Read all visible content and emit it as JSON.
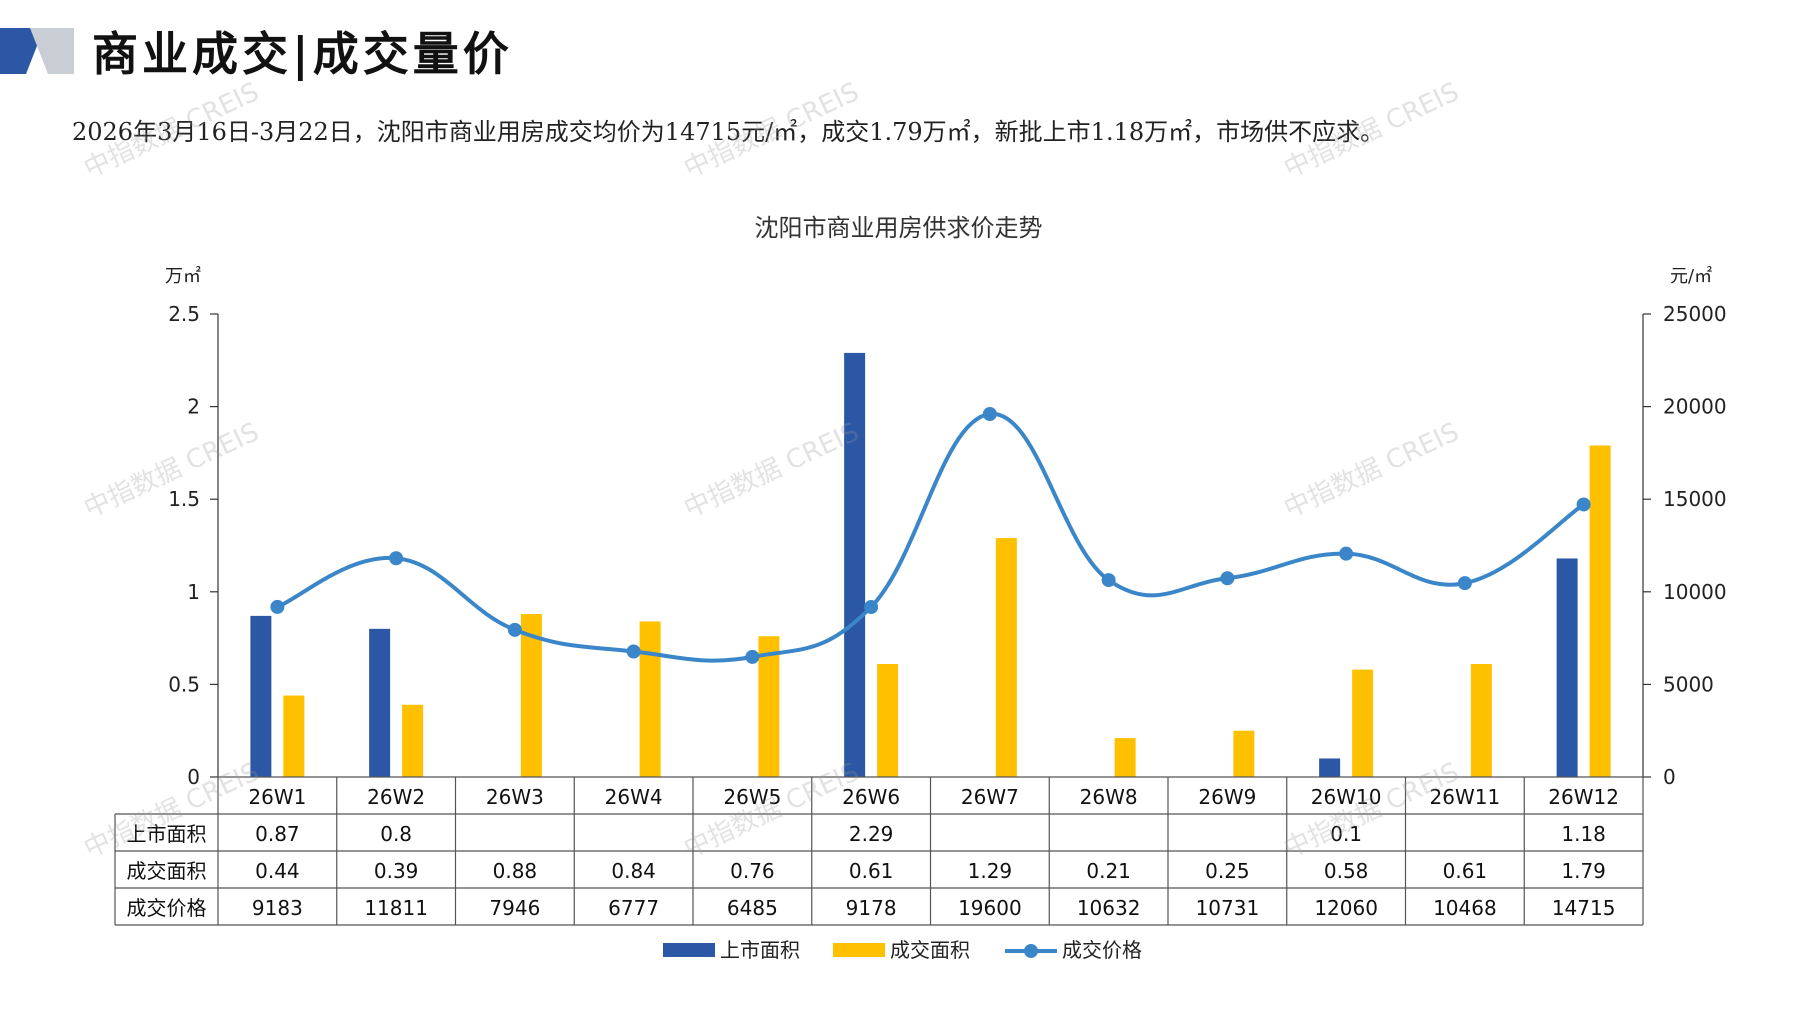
{
  "header": {
    "title": "商业成交|成交量价",
    "summary": "2026年3月16日-3月22日，沈阳市商业用房成交均价为14715元/㎡，成交1.79万㎡，新批上市1.18万㎡，市场供不应求。"
  },
  "watermark": "中指数据 CREIS",
  "colors": {
    "supply": "#2B57A5",
    "deal_area": "#FFC000",
    "price": "#3A86C8",
    "logo_dark": "#2B57A5",
    "logo_light": "#C9CDD4"
  },
  "chart_data": {
    "type": "bar",
    "title": "沈阳市商业用房供求价走势",
    "left_axis_unit": "万㎡",
    "right_axis_unit": "元/㎡",
    "left_ylim": [
      0,
      2.5
    ],
    "left_ticks": [
      "0",
      "0.5",
      "1",
      "1.5",
      "2",
      "2.5"
    ],
    "right_ylim": [
      0,
      25000
    ],
    "right_ticks": [
      "0",
      "5000",
      "10000",
      "15000",
      "20000",
      "25000"
    ],
    "categories": [
      "26W1",
      "26W2",
      "26W3",
      "26W4",
      "26W5",
      "26W6",
      "26W7",
      "26W8",
      "26W9",
      "26W10",
      "26W11",
      "26W12"
    ],
    "series": [
      {
        "name": "上市面积",
        "type": "bar",
        "axis": "left",
        "values": [
          0.87,
          0.8,
          null,
          null,
          null,
          2.29,
          null,
          null,
          null,
          0.1,
          null,
          1.18
        ]
      },
      {
        "name": "成交面积",
        "type": "bar",
        "axis": "left",
        "values": [
          0.44,
          0.39,
          0.88,
          0.84,
          0.76,
          0.61,
          1.29,
          0.21,
          0.25,
          0.58,
          0.61,
          1.79
        ]
      },
      {
        "name": "成交价格",
        "type": "line",
        "axis": "right",
        "values": [
          9183,
          11811,
          7946,
          6777,
          6485,
          9178,
          19600,
          10632,
          10731,
          12060,
          10468,
          14715
        ]
      }
    ],
    "table_display": [
      [
        "0.87",
        "0.8",
        "",
        "",
        "",
        "2.29",
        "",
        "",
        "",
        "0.1",
        "",
        "1.18"
      ],
      [
        "0.44",
        "0.39",
        "0.88",
        "0.84",
        "0.76",
        "0.61",
        "1.29",
        "0.21",
        "0.25",
        "0.58",
        "0.61",
        "1.79"
      ],
      [
        "9183",
        "11811",
        "7946",
        "6777",
        "6485",
        "9178",
        "19600",
        "10632",
        "10731",
        "12060",
        "10468",
        "14715"
      ]
    ],
    "legend_position": "bottom"
  }
}
